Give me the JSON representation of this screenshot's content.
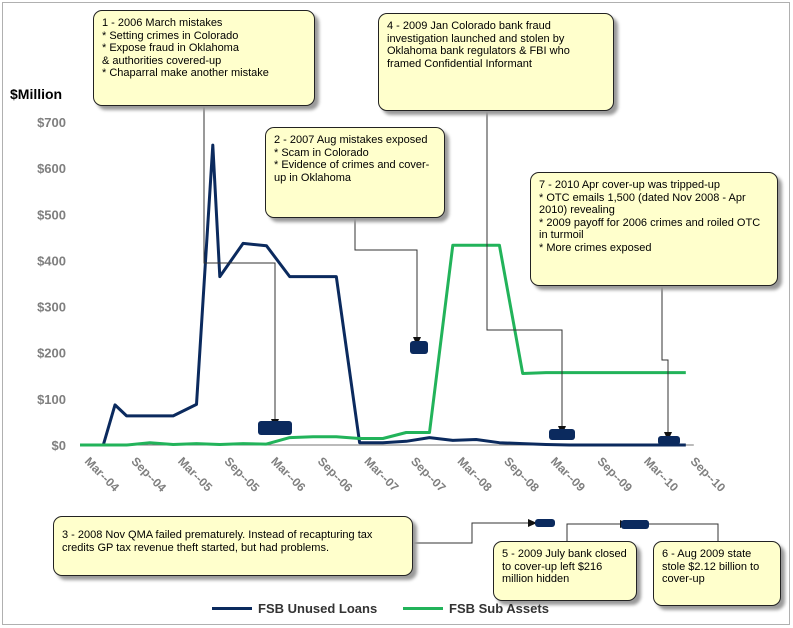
{
  "chart_data": {
    "type": "line",
    "ylabel": "$Million",
    "ylim": [
      0,
      700
    ],
    "yticks": [
      "$700",
      "$600",
      "$500",
      "$400",
      "$300",
      "$200",
      "$100",
      "$0"
    ],
    "xticks": [
      "Mar--04",
      "Sep--04",
      "Mar--05",
      "Sep--05",
      "Mar--06",
      "Sep--06",
      "Mar--07",
      "Sep--07",
      "Mar--08",
      "Sep--08",
      "Mar--09",
      "Sep--09",
      "Mar--10",
      "Sep--10"
    ],
    "series": [
      {
        "name": "FSB Unused Loans",
        "color": "#0b2a5e",
        "points": [
          [
            0,
            0
          ],
          [
            1,
            0
          ],
          [
            1.5,
            87
          ],
          [
            2,
            63
          ],
          [
            3,
            63
          ],
          [
            4,
            63
          ],
          [
            5,
            88
          ],
          [
            5.7,
            650
          ],
          [
            6,
            365
          ],
          [
            7,
            437
          ],
          [
            8,
            432
          ],
          [
            9,
            365
          ],
          [
            10,
            365
          ],
          [
            11,
            365
          ],
          [
            12,
            5
          ],
          [
            13,
            5
          ],
          [
            14,
            8
          ],
          [
            15,
            16
          ],
          [
            16,
            10
          ],
          [
            17,
            12
          ],
          [
            18,
            5
          ],
          [
            19,
            3
          ],
          [
            20,
            1
          ],
          [
            21,
            0
          ],
          [
            22,
            0
          ],
          [
            23,
            0
          ],
          [
            24,
            0
          ],
          [
            25,
            0
          ],
          [
            26,
            0
          ]
        ]
      },
      {
        "name": "FSB Sub Assets",
        "color": "#22b35a",
        "points": [
          [
            0,
            0
          ],
          [
            1,
            0
          ],
          [
            2,
            0
          ],
          [
            3,
            5
          ],
          [
            4,
            1
          ],
          [
            5,
            3
          ],
          [
            6,
            1
          ],
          [
            7,
            3
          ],
          [
            8,
            2
          ],
          [
            9,
            16
          ],
          [
            10,
            18
          ],
          [
            11,
            18
          ],
          [
            12,
            14
          ],
          [
            13,
            14
          ],
          [
            14,
            27
          ],
          [
            15,
            27
          ],
          [
            16,
            433
          ],
          [
            17,
            433
          ],
          [
            18,
            433
          ],
          [
            19,
            155
          ],
          [
            20,
            157
          ],
          [
            21,
            157
          ],
          [
            22,
            157
          ],
          [
            23,
            157
          ],
          [
            24,
            157
          ],
          [
            25,
            157
          ],
          [
            26,
            157
          ]
        ]
      }
    ],
    "legend_position": "bottom",
    "grid": false,
    "annotations": [
      "1 - 2006 March mistakes\n* Setting crimes in Colorado\n* Expose fraud in Oklahoma\n  & authorities covered-up\n* Chaparral make another mistake",
      "2 - 2007 Aug mistakes exposed\n* Scam in Colorado\n* Evidence of crimes and cover-up in Oklahoma",
      "3 - 2008 Nov QMA  failed prematurely. Instead of recapturing tax credits GP tax revenue theft started, but had problems.",
      "4 - 2009 Jan Colorado bank fraud investigation launched and stolen by Oklahoma bank regulators & FBI who framed Confidential Informant",
      "5 - 2009 July bank closed to cover-up left $216 million hidden",
      "6 - Aug 2009 state stole $2.12 billion to cover-up",
      "7 - 2010 Apr cover-up was tripped-up\n* OTC emails 1,500 (dated Nov 2008 - Apr 2010) revealing\n* 2009 payoff for 2006 crimes and roiled OTC in turmoil\n* More crimes exposed"
    ]
  }
}
